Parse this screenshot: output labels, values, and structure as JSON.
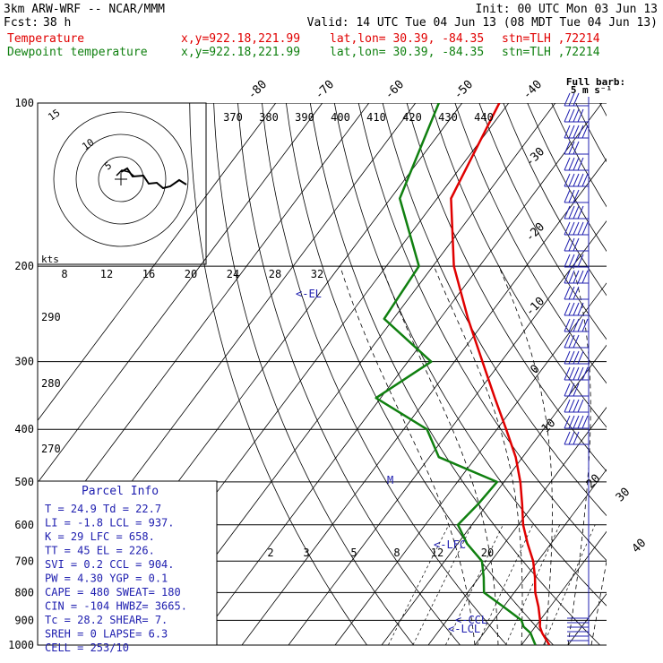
{
  "header": {
    "model": "3km ARW-WRF -- NCAR/MMM",
    "init": "Init: 00 UTC Mon 03 Jun 13",
    "fcst_label": "Fcst:",
    "fcst_value": "38 h",
    "valid": "Valid: 14 UTC Tue 04 Jun 13 (08 MDT Tue 04 Jun 13)",
    "temp_label": "Temperature",
    "dew_label": "Dewpoint temperature",
    "xy": "x,y=922.18,221.99",
    "latlon": "lat,lon= 30.39, -84.35",
    "stn": "stn=TLH ,72214"
  },
  "colors": {
    "temperature": "#e00000",
    "dewpoint": "#108010",
    "grid": "#000000",
    "barbs": "#2020b0"
  },
  "barb_key": {
    "title": "Full barb:",
    "value": "5 m s⁻¹"
  },
  "parcel": {
    "title": "Parcel Info",
    "lines": [
      "T  =   24.9 Td =  22.7",
      "LI =   -1.8 LCL =  937.",
      "K  =     29 LFC =  658.",
      "TT =     45 EL  =   226.",
      "SVI =   0.2 CCL =  904.",
      "PW =   4.30 YGP =   0.1",
      "CAPE =  480 SWEAT=  180",
      "CIN =  -104 HWBZ= 3665.",
      "Tc =   28.2 SHEAR=    7.",
      "SREH =    0 LAPSE=   6.3",
      "CELL = 253/10"
    ]
  },
  "hodograph": {
    "label": "kts"
  },
  "annotations": {
    "el": "<-EL",
    "lfc": "<-LFC",
    "ccl": "<-CCL",
    "lcl": "<-LCL",
    "m": "M"
  },
  "chart_data": {
    "type": "line",
    "subtype": "skew-T log-p",
    "pressure_ticks": [
      "100",
      "200",
      "300",
      "400",
      "500",
      "600",
      "700",
      "800",
      "900",
      "1000"
    ],
    "top_temp_labels": [
      "-80",
      "-70",
      "-60",
      "-50",
      "-40"
    ],
    "right_temp_labels": [
      "-30",
      "-20",
      "-10",
      "0",
      "10",
      "20",
      "30",
      "40"
    ],
    "theta_labels": [
      "370",
      "380",
      "390",
      "400",
      "410",
      "420",
      "430",
      "440"
    ],
    "theta_low_labels": [
      "290",
      "280",
      "270"
    ],
    "mixing_ratio_labels": [
      "2",
      "3",
      "5",
      "8",
      "12",
      "20"
    ],
    "hodo_speed_labels": [
      "8",
      "12",
      "16",
      "20",
      "24",
      "28",
      "32"
    ],
    "hodo_ring_labels": [
      "5",
      "10",
      "15"
    ],
    "pressure": [
      1000,
      950,
      925,
      900,
      850,
      800,
      750,
      700,
      650,
      600,
      550,
      500,
      450,
      400,
      350,
      300,
      250,
      200,
      150,
      100
    ],
    "series": [
      {
        "name": "Temperature",
        "values": [
          26.0,
          22.5,
          21.0,
          20.0,
          17.5,
          14.5,
          12.0,
          9.0,
          5.0,
          1.0,
          -2.5,
          -6.5,
          -11.5,
          -18.0,
          -25.5,
          -34.0,
          -44.0,
          -55.5,
          -67.0,
          -72.0
        ]
      },
      {
        "name": "Dewpoint temperature",
        "values": [
          23.0,
          20.0,
          17.5,
          16.0,
          10.0,
          3.5,
          1.0,
          -2.0,
          -8.0,
          -13.0,
          -12.0,
          -11.5,
          -28.0,
          -35.0,
          -51.0,
          -45.0,
          -62.0,
          -63.0,
          -78.0,
          -85.0
        ]
      }
    ]
  }
}
